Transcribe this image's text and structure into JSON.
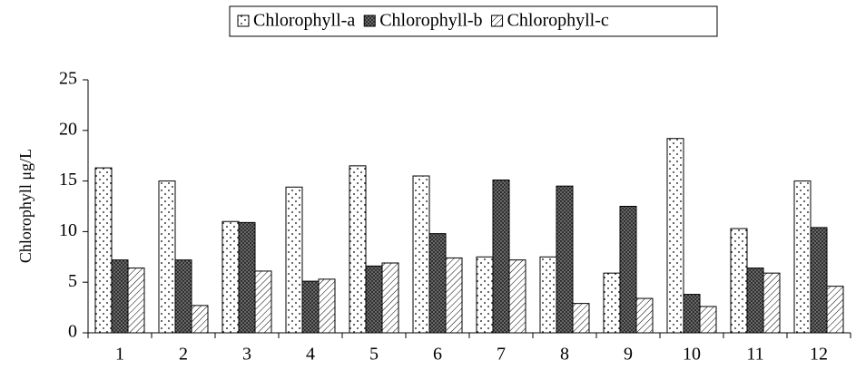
{
  "chart_data": {
    "type": "bar",
    "y_label": "Chlorophyll μg/L",
    "categories": [
      "1",
      "2",
      "3",
      "4",
      "5",
      "6",
      "7",
      "8",
      "9",
      "10",
      "11",
      "12"
    ],
    "series": [
      {
        "name": "Chlorophyll-a",
        "pattern": "dots",
        "color": "#000000",
        "values": [
          16.3,
          15.0,
          11.0,
          14.4,
          16.5,
          15.5,
          7.5,
          7.5,
          5.9,
          19.2,
          10.3,
          15.0
        ]
      },
      {
        "name": "Chlorophyll-b",
        "pattern": "crosshatch",
        "color": "#000000",
        "values": [
          7.2,
          7.2,
          10.9,
          5.1,
          6.6,
          9.8,
          15.1,
          14.5,
          12.5,
          3.8,
          6.4,
          10.4
        ]
      },
      {
        "name": "Chlorophyll-c",
        "pattern": "diagonal",
        "color": "#000000",
        "values": [
          6.4,
          2.7,
          6.1,
          5.3,
          6.9,
          7.4,
          7.2,
          2.9,
          3.4,
          2.6,
          5.9,
          4.6
        ]
      }
    ],
    "ylim": [
      0,
      25
    ],
    "yticks": [
      0,
      5,
      10,
      15,
      20,
      25
    ],
    "grid": false,
    "legend": "top"
  }
}
